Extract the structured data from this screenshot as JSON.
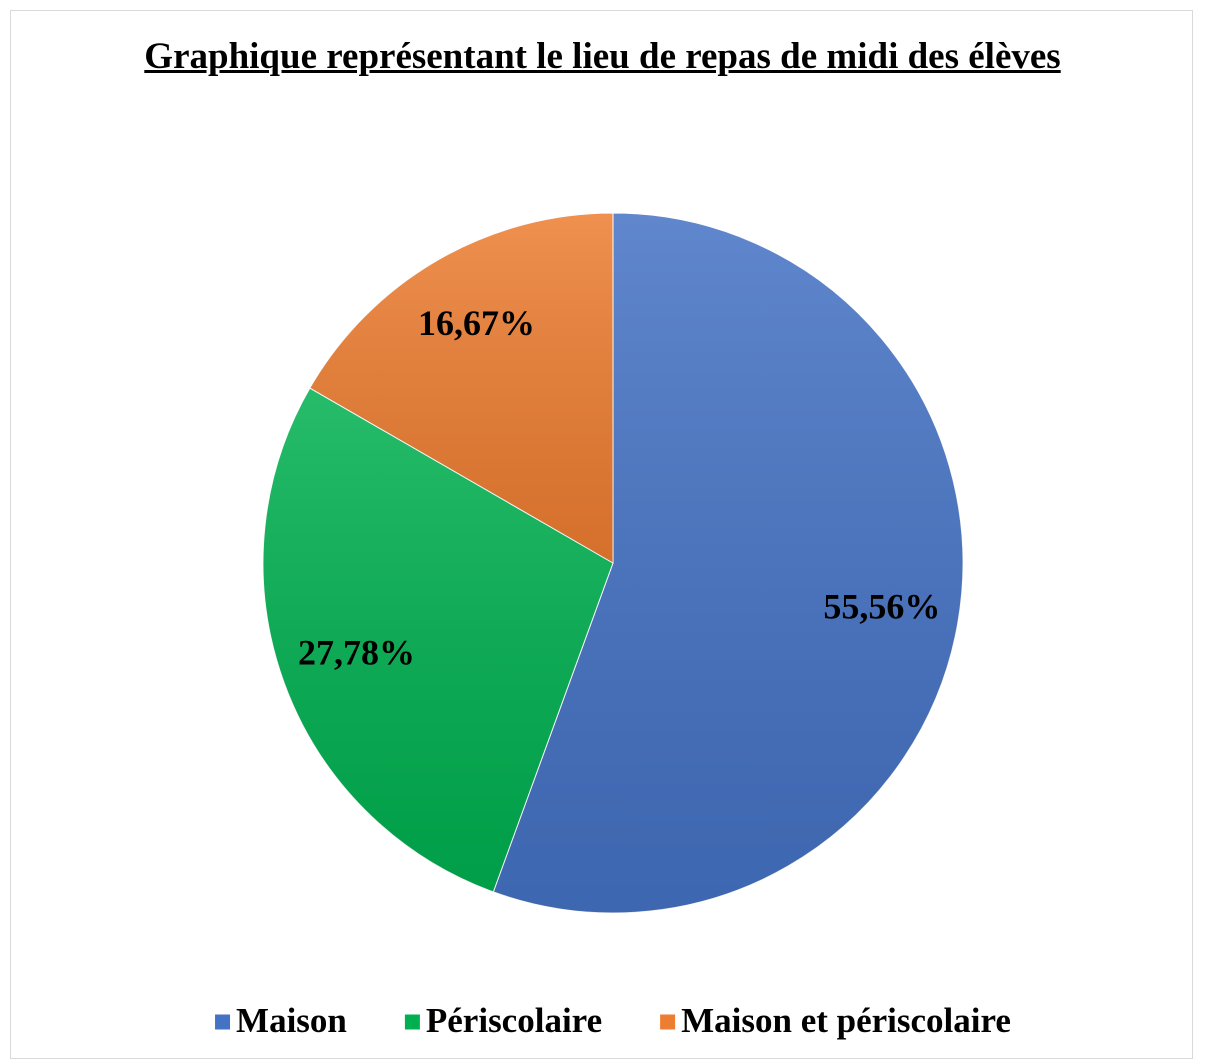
{
  "chart_data": {
    "type": "pie",
    "title": "Graphique représentant le lieu de repas de midi des élèves",
    "categories": [
      "Maison",
      "Périscolaire",
      "Maison et périscolaire"
    ],
    "values": [
      55.56,
      27.78,
      16.67
    ],
    "value_labels": [
      "55,56%",
      "27,78%",
      "16,67%"
    ],
    "colors": [
      "#4472c4",
      "#00b050",
      "#ed7d31"
    ],
    "legend": "bottom"
  }
}
